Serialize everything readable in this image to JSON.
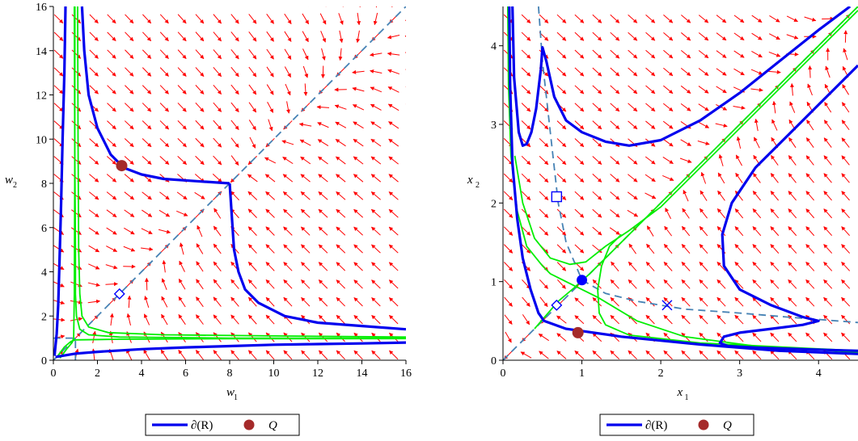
{
  "colors": {
    "field": "#ff0000",
    "boundary": "#0000ee",
    "separatrix": "#00ee00",
    "dashed": "#4682b4",
    "point_q": "#a52a2a",
    "marker": "#0000ff"
  },
  "chart_data": [
    {
      "type": "line",
      "id": "left",
      "xlabel": "w",
      "xlabel_sub": "1",
      "ylabel": "w",
      "ylabel_sub": "2",
      "xlim": [
        0,
        16
      ],
      "ylim": [
        0,
        16
      ],
      "xticks": [
        0,
        2,
        4,
        6,
        8,
        10,
        12,
        14,
        16
      ],
      "yticks": [
        0,
        2,
        4,
        6,
        8,
        10,
        12,
        14,
        16
      ],
      "legend": [
        {
          "label": "∂(R)",
          "kind": "line",
          "color": "#0000ee"
        },
        {
          "label": "Q",
          "kind": "dot",
          "color": "#a52a2a"
        }
      ],
      "series": [
        {
          "kind": "boundary",
          "points": [
            [
              0.55,
              16
            ],
            [
              0.5,
              13
            ],
            [
              0.42,
              10
            ],
            [
              0.35,
              7
            ],
            [
              0.28,
              4.5
            ],
            [
              0.22,
              2.5
            ],
            [
              0.15,
              1.2
            ],
            [
              0.05,
              0.2
            ]
          ]
        },
        {
          "kind": "boundary",
          "points": [
            [
              0.1,
              0.15
            ],
            [
              1,
              0.3
            ],
            [
              2,
              0.38
            ],
            [
              4,
              0.5
            ],
            [
              6,
              0.58
            ],
            [
              8,
              0.64
            ],
            [
              10,
              0.7
            ],
            [
              12,
              0.73
            ],
            [
              14,
              0.76
            ],
            [
              16,
              0.8
            ]
          ]
        },
        {
          "kind": "boundary",
          "points": [
            [
              1.3,
              16
            ],
            [
              1.4,
              14
            ],
            [
              1.6,
              12
            ],
            [
              2,
              10.5
            ],
            [
              2.6,
              9.3
            ],
            [
              3.2,
              8.7
            ],
            [
              4,
              8.4
            ],
            [
              5,
              8.2
            ],
            [
              6.5,
              8.1
            ],
            [
              8,
              8.0
            ]
          ]
        },
        {
          "kind": "boundary",
          "points": [
            [
              8,
              8.0
            ],
            [
              8.1,
              6.5
            ],
            [
              8.2,
              5
            ],
            [
              8.4,
              4
            ],
            [
              8.7,
              3.2
            ],
            [
              9.3,
              2.6
            ],
            [
              10.5,
              2.0
            ],
            [
              12,
              1.7
            ],
            [
              14,
              1.55
            ],
            [
              16,
              1.4
            ]
          ]
        },
        {
          "kind": "separatrix",
          "points": [
            [
              0.95,
              16
            ],
            [
              0.97,
              10
            ],
            [
              1.0,
              5
            ],
            [
              1.0,
              3
            ],
            [
              1.05,
              2
            ],
            [
              1.2,
              1.4
            ],
            [
              1.6,
              1.15
            ],
            [
              3,
              1.05
            ],
            [
              8,
              1.0
            ],
            [
              16,
              1.0
            ]
          ]
        },
        {
          "kind": "separatrix",
          "points": [
            [
              1.1,
              16
            ],
            [
              1.12,
              10
            ],
            [
              1.15,
              5
            ],
            [
              1.2,
              3
            ],
            [
              1.3,
              2
            ],
            [
              1.6,
              1.5
            ],
            [
              2.5,
              1.25
            ],
            [
              5,
              1.15
            ],
            [
              10,
              1.1
            ],
            [
              16,
              1.05
            ]
          ]
        },
        {
          "kind": "separatrix",
          "points": [
            [
              0.2,
              0.2
            ],
            [
              0.5,
              0.6
            ],
            [
              0.8,
              0.85
            ],
            [
              1.0,
              0.92
            ],
            [
              3,
              0.95
            ],
            [
              8,
              0.97
            ],
            [
              16,
              0.98
            ]
          ]
        },
        {
          "kind": "separatrix",
          "points": [
            [
              0.3,
              0.1
            ],
            [
              0.6,
              0.5
            ],
            [
              0.85,
              0.8
            ],
            [
              0.92,
              1.0
            ],
            [
              0.95,
              3
            ],
            [
              0.97,
              8
            ],
            [
              0.98,
              16
            ]
          ]
        },
        {
          "kind": "dashed",
          "points": [
            [
              0,
              0
            ],
            [
              16,
              16
            ]
          ]
        },
        {
          "kind": "dashed",
          "points": [
            [
              0,
              1
            ],
            [
              1,
              1
            ]
          ]
        },
        {
          "kind": "dashed",
          "points": [
            [
              1,
              0
            ],
            [
              1,
              1
            ]
          ]
        }
      ],
      "points_q": [
        [
          3.1,
          8.8
        ]
      ],
      "diamonds": [
        [
          3,
          3
        ]
      ],
      "squares": [],
      "crosses": [],
      "blue_dots": []
    },
    {
      "type": "line",
      "id": "right",
      "xlabel": "x",
      "xlabel_sub": "1",
      "ylabel": "x",
      "ylabel_sub": "2",
      "xlim": [
        0,
        4.5
      ],
      "ylim": [
        0,
        4.5
      ],
      "xticks": [
        0,
        1,
        2,
        3,
        4
      ],
      "yticks": [
        0,
        1,
        2,
        3,
        4
      ],
      "legend": [
        {
          "label": "∂(R)",
          "kind": "line",
          "color": "#0000ee"
        },
        {
          "label": "Q",
          "kind": "dot",
          "color": "#a52a2a"
        }
      ],
      "series": [
        {
          "kind": "boundary",
          "points": [
            [
              0.08,
              4.5
            ],
            [
              0.09,
              3.5
            ],
            [
              0.12,
              2.5
            ],
            [
              0.18,
              1.8
            ],
            [
              0.25,
              1.3
            ],
            [
              0.35,
              0.9
            ],
            [
              0.45,
              0.6
            ],
            [
              0.52,
              0.5
            ],
            [
              0.8,
              0.4
            ],
            [
              1.5,
              0.3
            ],
            [
              2.5,
              0.2
            ],
            [
              3.5,
              0.12
            ],
            [
              4.5,
              0.08
            ]
          ]
        },
        {
          "kind": "boundary",
          "points": [
            [
              0.12,
              4.5
            ],
            [
              0.14,
              3.6
            ],
            [
              0.2,
              2.9
            ],
            [
              0.25,
              2.73
            ],
            [
              0.3,
              2.75
            ],
            [
              0.36,
              2.9
            ],
            [
              0.42,
              3.2
            ],
            [
              0.48,
              3.7
            ],
            [
              0.5,
              3.98
            ],
            [
              0.55,
              3.8
            ],
            [
              0.65,
              3.35
            ],
            [
              0.8,
              3.05
            ],
            [
              1.0,
              2.9
            ],
            [
              1.3,
              2.78
            ],
            [
              1.6,
              2.73
            ],
            [
              2.0,
              2.8
            ],
            [
              2.5,
              3.05
            ],
            [
              3.0,
              3.4
            ],
            [
              3.5,
              3.8
            ],
            [
              4.0,
              4.2
            ],
            [
              4.4,
              4.5
            ]
          ]
        },
        {
          "kind": "boundary",
          "points": [
            [
              4.5,
              3.75
            ],
            [
              4.2,
              3.45
            ],
            [
              3.7,
              2.95
            ],
            [
              3.2,
              2.45
            ],
            [
              2.9,
              2.0
            ],
            [
              2.78,
              1.6
            ],
            [
              2.8,
              1.2
            ],
            [
              3.0,
              0.9
            ],
            [
              3.4,
              0.7
            ],
            [
              3.8,
              0.55
            ],
            [
              4.0,
              0.5
            ],
            [
              3.8,
              0.45
            ],
            [
              3.4,
              0.4
            ],
            [
              3.0,
              0.35
            ],
            [
              2.8,
              0.3
            ],
            [
              2.75,
              0.22
            ],
            [
              2.85,
              0.18
            ],
            [
              3.2,
              0.16
            ],
            [
              3.8,
              0.14
            ],
            [
              4.5,
              0.12
            ]
          ]
        },
        {
          "kind": "separatrix",
          "points": [
            [
              0.06,
              4.5
            ],
            [
              0.07,
              3.5
            ],
            [
              0.1,
              2.6
            ],
            [
              0.18,
              1.9
            ],
            [
              0.3,
              1.45
            ],
            [
              0.5,
              1.2
            ],
            [
              0.6,
              1.1
            ],
            [
              0.8,
              1.0
            ],
            [
              1.2,
              0.8
            ],
            [
              1.7,
              0.5
            ],
            [
              2.3,
              0.3
            ],
            [
              3.2,
              0.18
            ],
            [
              4.5,
              0.1
            ]
          ]
        },
        {
          "kind": "separatrix",
          "points": [
            [
              0.15,
              2.6
            ],
            [
              0.25,
              2.0
            ],
            [
              0.4,
              1.55
            ],
            [
              0.6,
              1.3
            ],
            [
              0.85,
              1.22
            ],
            [
              1.05,
              1.25
            ],
            [
              1.3,
              1.45
            ],
            [
              1.6,
              1.65
            ],
            [
              2.0,
              1.95
            ],
            [
              3.0,
              2.95
            ],
            [
              4.0,
              3.95
            ],
            [
              4.5,
              4.45
            ]
          ]
        },
        {
          "kind": "separatrix",
          "points": [
            [
              0.4,
              0.4
            ],
            [
              0.7,
              0.75
            ],
            [
              0.9,
              0.92
            ],
            [
              1.1,
              1.1
            ],
            [
              1.4,
              1.4
            ],
            [
              2,
              2
            ],
            [
              3,
              3
            ],
            [
              4,
              4
            ],
            [
              4.5,
              4.5
            ]
          ]
        },
        {
          "kind": "separatrix",
          "points": [
            [
              1.2,
              0.9
            ],
            [
              1.25,
              1.2
            ],
            [
              1.35,
              1.45
            ],
            [
              1.5,
              1.6
            ]
          ]
        },
        {
          "kind": "separatrix",
          "points": [
            [
              1.2,
              0.9
            ],
            [
              1.22,
              0.6
            ],
            [
              1.3,
              0.45
            ],
            [
              1.6,
              0.32
            ],
            [
              2.5,
              0.22
            ],
            [
              4.5,
              0.12
            ]
          ]
        },
        {
          "kind": "dashed",
          "points": [
            [
              0,
              0
            ],
            [
              4.5,
              4.5
            ]
          ]
        },
        {
          "kind": "dashed",
          "points": [
            [
              0.45,
              4.5
            ],
            [
              0.5,
              3.8
            ],
            [
              0.6,
              2.9
            ],
            [
              0.7,
              2.0
            ],
            [
              0.8,
              1.5
            ],
            [
              1.0,
              1.02
            ],
            [
              1.3,
              0.85
            ],
            [
              1.7,
              0.75
            ],
            [
              2.3,
              0.65
            ],
            [
              3,
              0.6
            ],
            [
              3.6,
              0.55
            ],
            [
              4.5,
              0.48
            ]
          ]
        }
      ],
      "points_q": [
        [
          0.95,
          0.35
        ]
      ],
      "diamonds": [
        [
          0.68,
          0.7
        ]
      ],
      "squares": [
        [
          0.68,
          2.08
        ]
      ],
      "crosses": [
        [
          2.08,
          0.7
        ]
      ],
      "blue_dots": [
        [
          1.0,
          1.02
        ]
      ]
    }
  ]
}
